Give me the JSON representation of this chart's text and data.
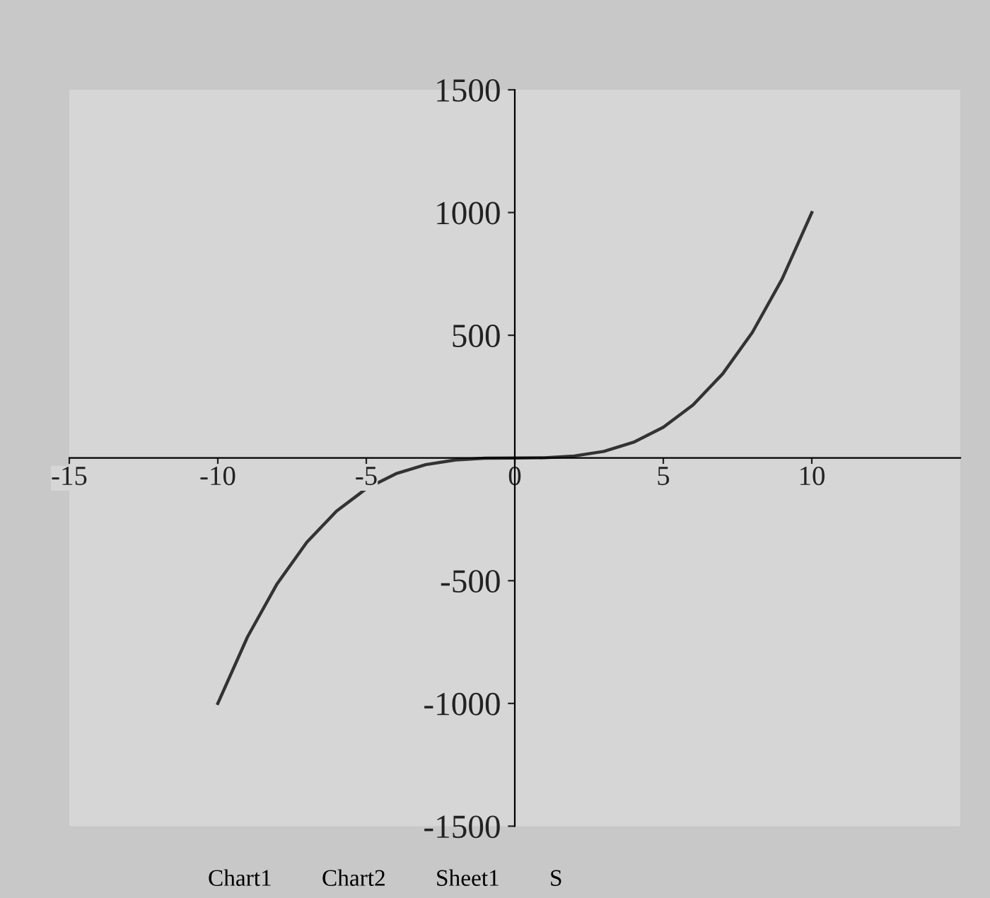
{
  "chart_data": {
    "type": "line",
    "x": [
      -10,
      -9,
      -8,
      -7,
      -6,
      -5,
      -4,
      -3,
      -2,
      -1,
      0,
      1,
      2,
      3,
      4,
      5,
      6,
      7,
      8,
      9,
      10
    ],
    "series": [
      {
        "color": "#333333",
        "values": [
          -1000,
          -729,
          -512,
          -343,
          -216,
          -125,
          -64,
          -27,
          -8,
          -1,
          0,
          1,
          8,
          27,
          64,
          125,
          216,
          343,
          512,
          729,
          1000
        ]
      }
    ],
    "xlim": [
      -15,
      15
    ],
    "xticks": [
      -15,
      -10,
      -5,
      0,
      5,
      10
    ],
    "ylim": [
      -1500,
      1500
    ],
    "yticks": [
      -1500,
      -1000,
      -500,
      {
        "value": 0,
        "label": null
      },
      500,
      1000,
      1500
    ],
    "grid": false,
    "legend": false,
    "marker": "none",
    "line_style": "solid",
    "annotations": [
      "Chart1",
      "Chart2",
      "Sheet1",
      "S"
    ]
  }
}
